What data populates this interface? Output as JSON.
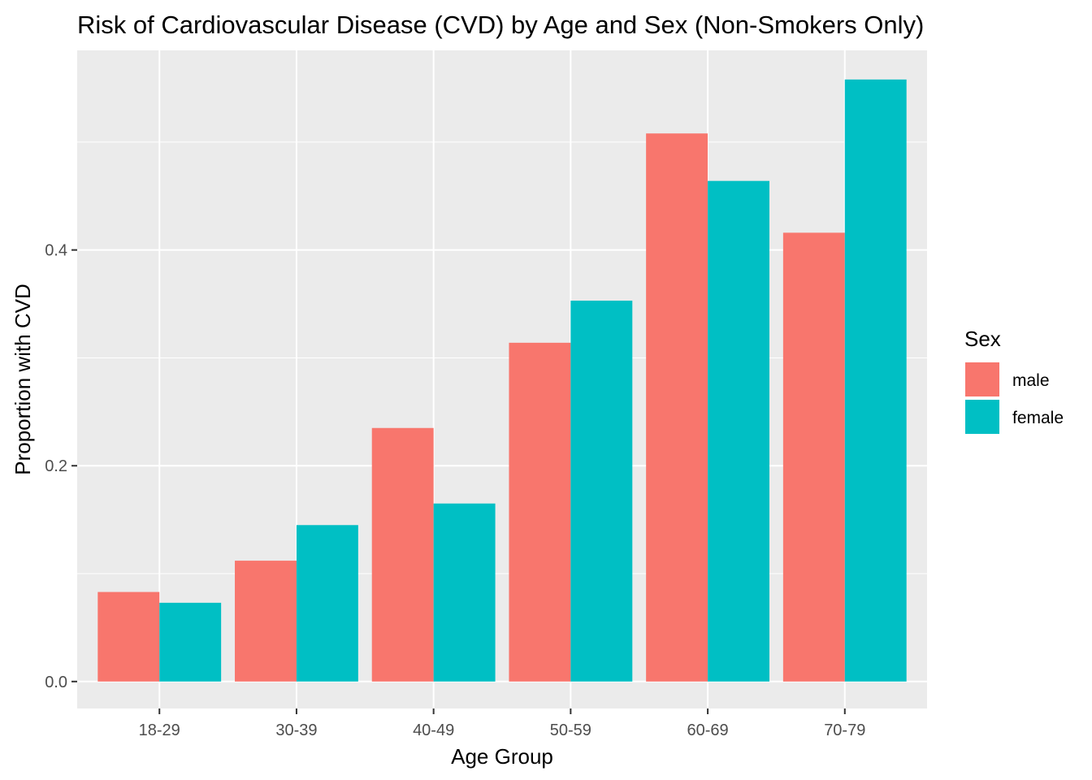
{
  "chart_data": {
    "type": "bar",
    "title": "Risk of Cardiovascular Disease (CVD) by Age and Sex (Non-Smokers Only)",
    "xlabel": "Age Group",
    "ylabel": "Proportion with CVD",
    "categories": [
      "18-29",
      "30-39",
      "40-49",
      "50-59",
      "60-69",
      "70-79"
    ],
    "series": [
      {
        "name": "male",
        "color": "#F8766D",
        "values": [
          0.083,
          0.112,
          0.235,
          0.314,
          0.508,
          0.416
        ]
      },
      {
        "name": "female",
        "color": "#00BFC4",
        "values": [
          0.073,
          0.145,
          0.165,
          0.353,
          0.464,
          0.558
        ]
      }
    ],
    "ylim": [
      -0.025,
      0.585
    ],
    "yticks": [
      0.0,
      0.2,
      0.4
    ],
    "ytick_labels": [
      "0.0",
      "0.2",
      "0.4"
    ],
    "grid": true,
    "legend": {
      "title": "Sex",
      "position": "right"
    },
    "panel_background": "#EBEBEB",
    "grid_color": "#FFFFFF"
  }
}
